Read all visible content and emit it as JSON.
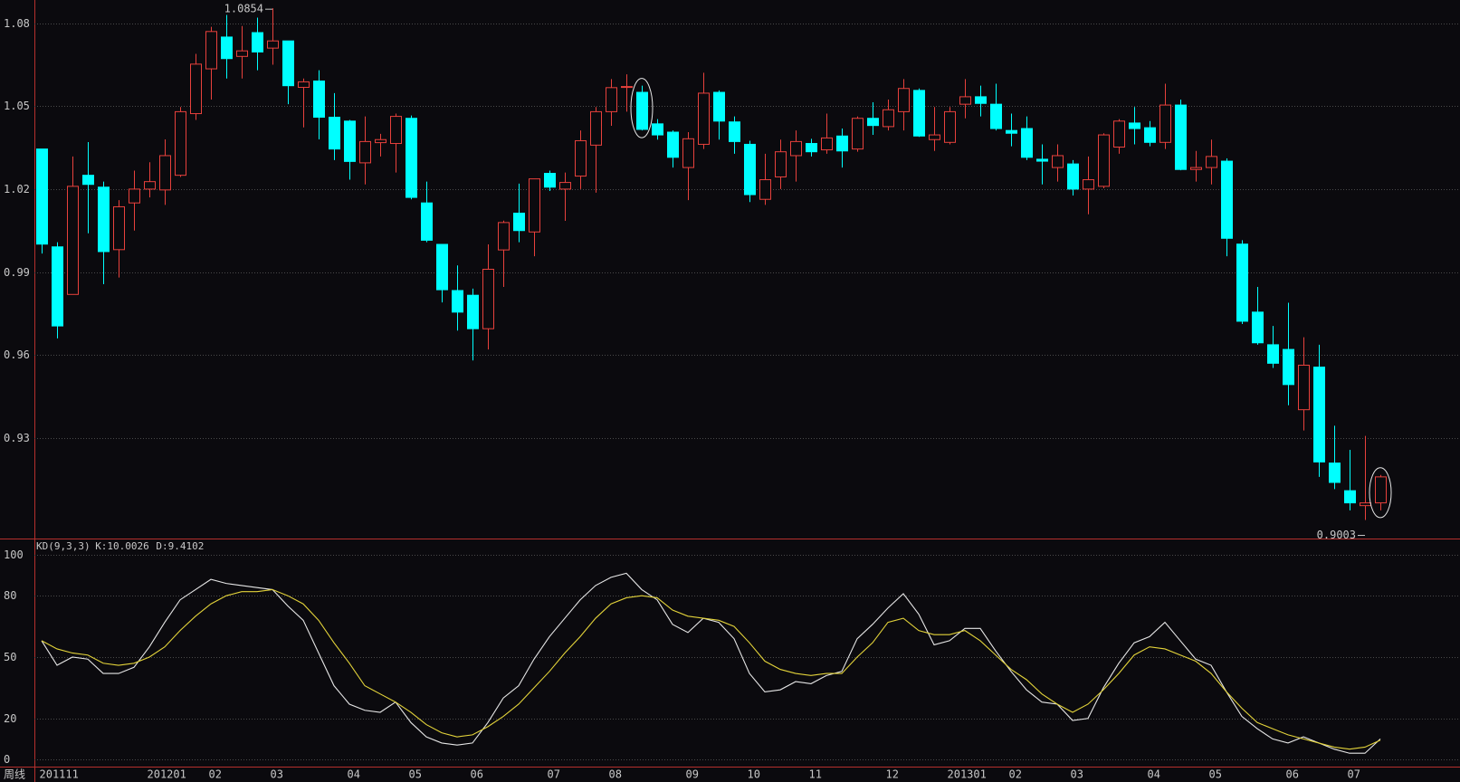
{
  "chart_data": [
    {
      "type": "candlestick",
      "x_label": "周线",
      "categories": [
        "201111",
        null,
        null,
        null,
        null,
        null,
        null,
        "201201",
        null,
        null,
        null,
        "02",
        null,
        null,
        null,
        "03",
        null,
        null,
        null,
        null,
        "04",
        null,
        null,
        null,
        "05",
        null,
        null,
        null,
        "06",
        null,
        null,
        null,
        null,
        "07",
        null,
        null,
        null,
        "08",
        null,
        null,
        null,
        null,
        "09",
        null,
        null,
        null,
        "10",
        null,
        null,
        null,
        "11",
        null,
        null,
        null,
        null,
        "12",
        null,
        null,
        null,
        "201301",
        null,
        null,
        null,
        "02",
        null,
        null,
        null,
        "03",
        null,
        null,
        null,
        null,
        "04",
        null,
        null,
        null,
        "05",
        null,
        null,
        null,
        null,
        "06",
        null,
        null,
        null,
        "07",
        null,
        null
      ],
      "open": [
        1.0345,
        0.9991,
        0.9819,
        1.025,
        1.0207,
        0.9981,
        1.015,
        1.02,
        1.0197,
        1.025,
        1.0473,
        1.0635,
        1.075,
        1.068,
        1.0766,
        1.071,
        1.0736,
        1.0568,
        1.0591,
        1.046,
        1.0446,
        1.0295,
        1.0368,
        1.0365,
        1.0456,
        1.015,
        1.0,
        0.9833,
        0.9816,
        0.9695,
        0.998,
        1.0113,
        1.0045,
        1.0257,
        1.02,
        1.0247,
        1.0359,
        1.048,
        1.0568,
        1.055,
        1.0436,
        1.0406,
        1.0278,
        1.0362,
        1.055,
        1.0443,
        1.0362,
        1.0163,
        1.0244,
        1.0321,
        1.0365,
        1.0342,
        1.0392,
        1.0345,
        1.0456,
        1.0426,
        1.048,
        1.0557,
        1.0379,
        1.0369,
        1.0507,
        1.0534,
        1.0507,
        1.0412,
        1.0419,
        1.0308,
        1.0278,
        1.0291,
        1.02,
        1.021,
        1.0352,
        1.0439,
        1.0422,
        1.0369,
        1.0504,
        1.0271,
        1.0278,
        1.0301,
        1.0001,
        0.9755,
        0.9637,
        0.962,
        0.9402,
        0.9556,
        0.9209,
        0.9109,
        0.9055,
        0.9065
      ],
      "high": [
        1.0345,
        1.0008,
        1.0318,
        1.037,
        1.0227,
        1.016,
        1.0267,
        1.0297,
        1.038,
        1.0497,
        1.0689,
        1.0787,
        1.083,
        1.079,
        1.082,
        1.0854,
        1.0736,
        1.06,
        1.063,
        1.0547,
        1.045,
        1.0463,
        1.04,
        1.0473,
        1.0466,
        1.0227,
        1.0,
        0.9924,
        0.984,
        1.0,
        1.0086,
        1.022,
        1.0237,
        1.0267,
        1.026,
        1.0412,
        1.0497,
        1.0598,
        1.0615,
        1.0574,
        1.0453,
        1.0412,
        1.0406,
        1.0621,
        1.0557,
        1.0463,
        1.0375,
        1.0328,
        1.0379,
        1.0412,
        1.0382,
        1.0473,
        1.0419,
        1.0463,
        1.0514,
        1.0524,
        1.0598,
        1.0564,
        1.0497,
        1.0497,
        1.0598,
        1.0574,
        1.0581,
        1.0473,
        1.0463,
        1.0362,
        1.0362,
        1.0305,
        1.0318,
        1.0402,
        1.0453,
        1.0497,
        1.0446,
        1.0581,
        1.0524,
        1.0338,
        1.0379,
        1.0311,
        1.0015,
        0.9846,
        0.9705,
        0.9789,
        0.9664,
        0.9637,
        0.9344,
        0.9257,
        0.9307,
        0.9166
      ],
      "low": [
        0.9967,
        0.966,
        0.9819,
        1.004,
        0.9856,
        0.988,
        1.005,
        1.017,
        1.0143,
        1.0244,
        1.045,
        1.0524,
        1.06,
        1.06,
        1.063,
        1.065,
        1.0507,
        1.0423,
        1.038,
        1.0305,
        1.0234,
        1.0217,
        1.0318,
        1.026,
        1.0163,
        1.0008,
        0.979,
        0.9688,
        0.958,
        0.962,
        0.9846,
        1.0008,
        0.9957,
        1.0193,
        1.0085,
        1.02,
        1.0187,
        1.0429,
        1.048,
        1.0412,
        1.0379,
        1.0278,
        1.016,
        1.0345,
        1.0379,
        1.0328,
        1.0153,
        1.0143,
        1.02,
        1.0227,
        1.0318,
        1.0328,
        1.0278,
        1.0335,
        1.0396,
        1.0412,
        1.0412,
        1.0389,
        1.0338,
        1.0362,
        1.0456,
        1.0463,
        1.0412,
        1.0355,
        1.0305,
        1.0217,
        1.0227,
        1.0177,
        1.0109,
        1.0203,
        1.0328,
        1.0362,
        1.0355,
        1.0345,
        1.0268,
        1.0227,
        1.0217,
        0.9957,
        0.9712,
        0.9637,
        0.9553,
        0.9418,
        0.9327,
        0.9159,
        0.9115,
        0.9038,
        0.9003,
        0.9038
      ],
      "close": [
        1.0001,
        0.9705,
        1.021,
        1.0217,
        0.9974,
        1.0136,
        1.02,
        1.0227,
        1.0321,
        1.048,
        1.0652,
        1.077,
        1.0672,
        1.07,
        1.0696,
        1.0736,
        1.0574,
        1.0588,
        1.046,
        1.0345,
        1.03,
        1.0372,
        1.0379,
        1.0463,
        1.017,
        1.0015,
        0.9836,
        0.9755,
        0.9695,
        0.991,
        1.0079,
        1.005,
        1.0237,
        1.0207,
        1.0224,
        1.0375,
        1.048,
        1.0567,
        1.0571,
        1.0416,
        1.0396,
        1.0315,
        1.0382,
        1.0547,
        1.0446,
        1.0372,
        1.018,
        1.0234,
        1.0335,
        1.0372,
        1.0335,
        1.0385,
        1.0338,
        1.0456,
        1.043,
        1.0487,
        1.0564,
        1.0392,
        1.0396,
        1.048,
        1.0534,
        1.051,
        1.0419,
        1.0402,
        1.0315,
        1.0301,
        1.0321,
        1.02,
        1.0234,
        1.0396,
        1.0446,
        1.0419,
        1.0369,
        1.0504,
        1.0271,
        1.0278,
        1.0318,
        1.0022,
        0.9722,
        0.9644,
        0.957,
        0.9493,
        0.9563,
        0.9213,
        0.9139,
        0.9065,
        0.9065,
        0.9159
      ],
      "up_color": "#e8413c",
      "down_color": "#00ffff",
      "annotations": [
        "1.0854",
        "0.9003"
      ],
      "ylim": [
        0.8936,
        1.0884
      ],
      "yticks": [
        1.08,
        1.05,
        1.02,
        0.99,
        0.96,
        0.93
      ],
      "grid": true
    },
    {
      "type": "line",
      "title": "KD(9,3,3)",
      "series": [
        {
          "name": "K:10.0026",
          "color": "#e6e6e6",
          "values": [
            58,
            46,
            50,
            49,
            42,
            42,
            45,
            55,
            67,
            78,
            83,
            88,
            86,
            85,
            84,
            83,
            75,
            68,
            52,
            36,
            27,
            24,
            23,
            28,
            18,
            11,
            8,
            7,
            8,
            18,
            30,
            36,
            49,
            60,
            69,
            78,
            85,
            89,
            91,
            83,
            78,
            66,
            62,
            69,
            67,
            59,
            42,
            33,
            34,
            38,
            37,
            41,
            43,
            59,
            66,
            74,
            81,
            71,
            56,
            58,
            64,
            64,
            53,
            43,
            34,
            28,
            27,
            19,
            20,
            35,
            47,
            57,
            60,
            67,
            58,
            49,
            46,
            33,
            21,
            15,
            10,
            8,
            11,
            8,
            5,
            3,
            3,
            10.0026
          ]
        },
        {
          "name": "D:9.4102",
          "color": "#e3d33a",
          "values": [
            58,
            54,
            52,
            51,
            47,
            46,
            47,
            50,
            55,
            63,
            70,
            76,
            80,
            82,
            82,
            83,
            80,
            76,
            68,
            57,
            47,
            36,
            32,
            28,
            23,
            17,
            13,
            11,
            12,
            16,
            21,
            27,
            35,
            43,
            52,
            60,
            69,
            76,
            79,
            80,
            79,
            73,
            70,
            69,
            68,
            65,
            57,
            48,
            44,
            42,
            41,
            42,
            42,
            50,
            57,
            67,
            69,
            63,
            61,
            61,
            63,
            58,
            51,
            44,
            39,
            32,
            27,
            23,
            27,
            34,
            42,
            51,
            55,
            54,
            51,
            48,
            42,
            33,
            25,
            18,
            15,
            12,
            10,
            8,
            6,
            5,
            6,
            9.4102
          ]
        }
      ],
      "ylim": [
        0,
        100
      ],
      "yticks": [
        100,
        80,
        50,
        20,
        0
      ],
      "grid": true
    }
  ]
}
